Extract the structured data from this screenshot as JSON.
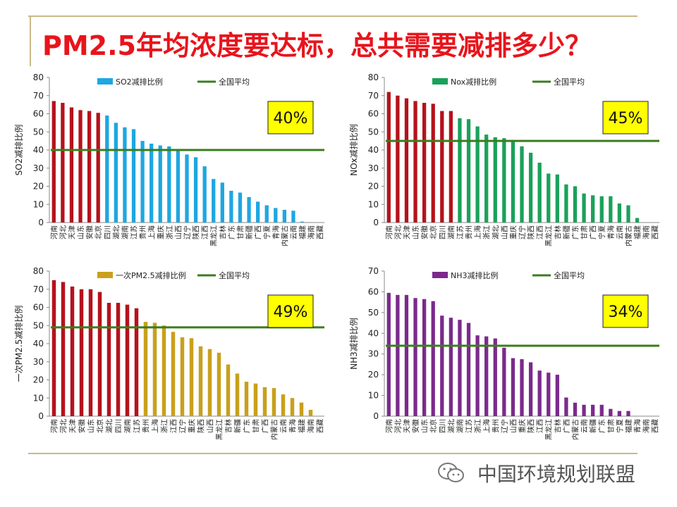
{
  "slide": {
    "title": "PM2.5年均浓度要达标，总共需要减排多少？",
    "watermark": "中国环境规划联盟",
    "watermark_icon": "wechat-icon"
  },
  "colors": {
    "red": "#b5121b",
    "avg_line": "#3a7d1e",
    "badge_bg": "#ffff00"
  },
  "chart_data": [
    {
      "type": "bar",
      "ylabel": "SO2减排比例",
      "ylim": [
        0,
        80
      ],
      "yticks": [
        0,
        10,
        20,
        30,
        40,
        50,
        60,
        70,
        80
      ],
      "legend": {
        "series": "SO2减排比例",
        "avg": "全国平均",
        "position": "top"
      },
      "series_color": "#1ea7e1",
      "highlight_count": 6,
      "average": 40,
      "badge": "40%",
      "categories": [
        "河南",
        "河北",
        "天津",
        "山东",
        "安徽",
        "北京",
        "四川",
        "湖北",
        "湖南",
        "江苏",
        "贵州",
        "上海",
        "重庆",
        "浙江",
        "山西",
        "辽宁",
        "陕西",
        "江西",
        "黑龙江",
        "吉林",
        "广东",
        "甘肃",
        "新疆",
        "广西",
        "宁夏",
        "青海",
        "内蒙古",
        "云南",
        "福建",
        "海南",
        "西藏"
      ],
      "values": [
        67,
        66,
        63.5,
        62,
        61.5,
        60.5,
        59,
        55,
        52.5,
        51.5,
        45,
        43.5,
        42.5,
        42,
        40,
        37.5,
        36,
        31,
        24,
        22,
        17.5,
        16.5,
        14,
        11.5,
        9.5,
        8,
        7,
        6.5,
        0.5,
        0,
        0
      ]
    },
    {
      "type": "bar",
      "ylabel": "NOx减排比例",
      "ylim": [
        0,
        80
      ],
      "yticks": [
        0,
        10,
        20,
        30,
        40,
        50,
        60,
        70,
        80
      ],
      "legend": {
        "series": "Nox减排比例",
        "avg": "全国平均",
        "position": "top"
      },
      "series_color": "#1aa15a",
      "highlight_count": 8,
      "average": 45,
      "badge": "45%",
      "categories": [
        "河南",
        "河北",
        "天津",
        "山东",
        "安徽",
        "北京",
        "四川",
        "湖南",
        "江苏",
        "贵州",
        "上海",
        "浙江",
        "湖北",
        "山西",
        "重庆",
        "辽宁",
        "陕西",
        "江西",
        "黑龙江",
        "吉林",
        "新疆",
        "广东",
        "甘肃",
        "广西",
        "宁夏",
        "青海",
        "云南",
        "内蒙古",
        "福建",
        "海南",
        "西藏"
      ],
      "values": [
        72,
        70,
        68.5,
        67,
        66,
        65.5,
        61.5,
        61.5,
        57.5,
        57,
        53,
        48.5,
        47,
        46.5,
        45.5,
        42,
        38.5,
        33,
        27,
        26.5,
        21,
        20,
        16,
        15,
        14.5,
        14.5,
        10.5,
        9.5,
        2.5,
        0,
        0
      ]
    },
    {
      "type": "bar",
      "ylabel": "一次PM2.5减排比例",
      "ylim": [
        0,
        80
      ],
      "yticks": [
        0,
        10,
        20,
        30,
        40,
        50,
        60,
        70,
        80
      ],
      "legend": {
        "series": "一次PM2.5减排比例",
        "avg": "全国平均",
        "position": "top"
      },
      "series_color": "#c9a01c",
      "highlight_count": 10,
      "average": 49,
      "badge": "49%",
      "categories": [
        "河南",
        "河北",
        "天津",
        "安徽",
        "山东",
        "北京",
        "湖北",
        "四川",
        "湖南",
        "江苏",
        "贵州",
        "上海",
        "浙江",
        "江西",
        "辽宁",
        "重庆",
        "陕西",
        "山西",
        "黑龙江",
        "吉林",
        "新疆",
        "广东",
        "甘肃",
        "广西",
        "内蒙古",
        "云南",
        "青海",
        "福建",
        "海南",
        "西藏"
      ],
      "values": [
        75,
        74,
        71.5,
        70,
        70,
        68.5,
        62.5,
        62.5,
        61.5,
        59.5,
        52,
        51.5,
        50,
        46.5,
        43.5,
        43,
        38.5,
        37,
        35,
        28.5,
        23.5,
        19,
        18,
        16,
        15.5,
        12,
        10,
        7.5,
        3.5,
        0
      ]
    },
    {
      "type": "bar",
      "ylabel": "NH3减排比例",
      "ylim": [
        0,
        70
      ],
      "yticks": [
        0,
        10,
        20,
        30,
        40,
        50,
        60,
        70
      ],
      "legend": {
        "series": "NH3减排比例",
        "avg": "全国平均",
        "position": "top"
      },
      "series_color": "#7b2a8c",
      "highlight_count": 0,
      "average": 34,
      "badge": "34%",
      "categories": [
        "河南",
        "河北",
        "天津",
        "安徽",
        "山东",
        "北京",
        "四川",
        "湖北",
        "湖南",
        "江苏",
        "浙江",
        "上海",
        "贵州",
        "辽宁",
        "山西",
        "重庆",
        "陕西",
        "江西",
        "黑龙江",
        "吉林",
        "广西",
        "内蒙古",
        "云南",
        "新疆",
        "广东",
        "甘肃",
        "宁夏",
        "福建",
        "青海",
        "海南",
        "西藏"
      ],
      "values": [
        59.5,
        58.5,
        58.5,
        57,
        56.5,
        55.5,
        48.5,
        47.5,
        46.5,
        45,
        39,
        38.5,
        37.5,
        33,
        28,
        27.5,
        26,
        22,
        21,
        20,
        9,
        6.5,
        5.5,
        5.5,
        5.5,
        3.5,
        2.5,
        2.5,
        0,
        0,
        0
      ]
    }
  ]
}
